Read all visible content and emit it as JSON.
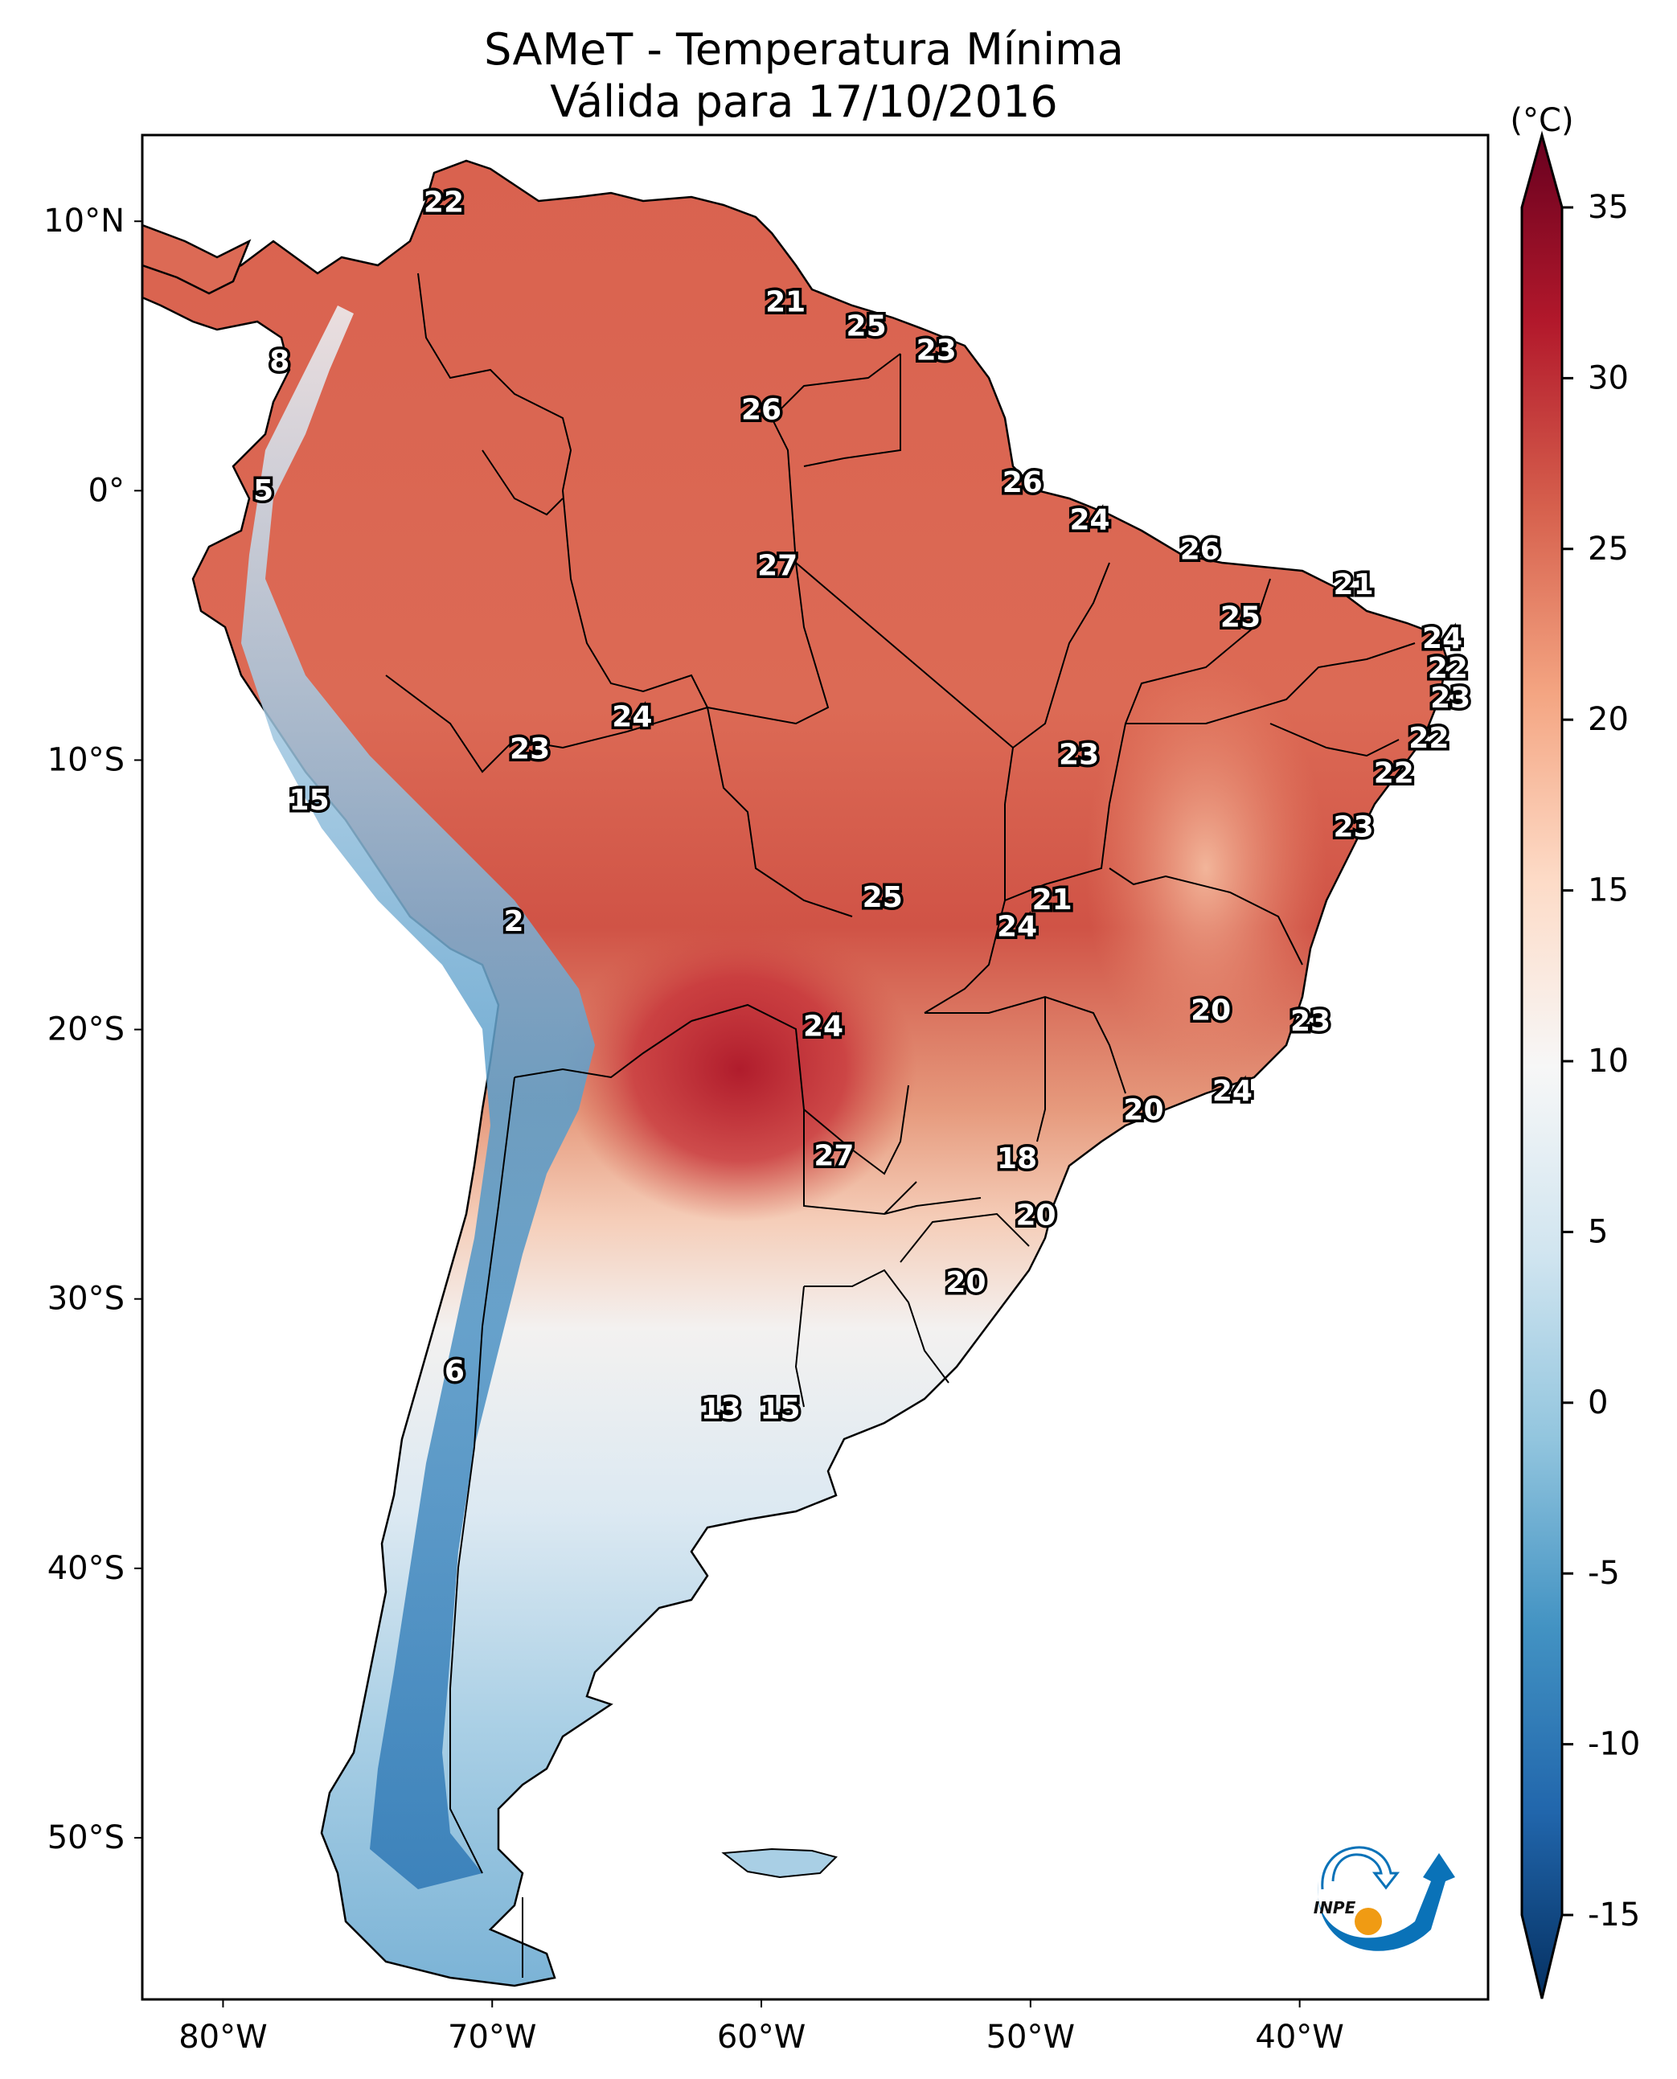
{
  "title_line1": "SAMeT - Temperatura Mínima",
  "title_line2": "Válida para 17/10/2016",
  "chart_data": {
    "type": "heatmap",
    "title": "SAMeT - Temperatura Mínima",
    "subtitle": "Válida para 17/10/2016",
    "variable": "Minimum temperature",
    "units": "(°C)",
    "region": "South America",
    "xaxis": {
      "ticks": [
        -80,
        -70,
        -60,
        -50,
        -40
      ],
      "tick_labels": [
        "80°W",
        "70°W",
        "60°W",
        "50°W",
        "40°W"
      ],
      "range": [
        -83,
        -33
      ]
    },
    "yaxis": {
      "ticks": [
        10,
        0,
        -10,
        -20,
        -30,
        -40,
        -50
      ],
      "tick_labels": [
        "10°N",
        "0°",
        "10°S",
        "20°S",
        "30°S",
        "40°S",
        "50°S"
      ],
      "range": [
        -56,
        13.2
      ]
    },
    "colorbar": {
      "label": "(°C)",
      "min": -15,
      "max": 35,
      "ticks": [
        35,
        30,
        25,
        20,
        15,
        10,
        5,
        0,
        -5,
        -10,
        -15
      ],
      "tick_labels": [
        "35",
        "30",
        "25",
        "20",
        "15",
        "10",
        "5",
        "0",
        "-5",
        "-10",
        "-15"
      ],
      "colormap": "RdBu_r",
      "extend": "both",
      "colors": {
        "-15": "#053061",
        "-10": "#2166ac",
        "-5": "#4393c3",
        "0": "#92c5de",
        "5": "#d1e5f0",
        "10": "#f7f7f7",
        "15": "#fddbc7",
        "20": "#f4a582",
        "25": "#d6604d",
        "30": "#b2182b",
        "35": "#67001f"
      }
    },
    "annotations": [
      {
        "lon": -71.8,
        "lat": 10.7,
        "value": 22
      },
      {
        "lon": -77.9,
        "lat": 4.8,
        "value": 8
      },
      {
        "lon": -78.5,
        "lat": 0.0,
        "value": 5
      },
      {
        "lon": -59.1,
        "lat": 7.0,
        "value": 21
      },
      {
        "lon": -56.1,
        "lat": 6.1,
        "value": 25
      },
      {
        "lon": -53.5,
        "lat": 5.2,
        "value": 23
      },
      {
        "lon": -60.0,
        "lat": 3.0,
        "value": 26
      },
      {
        "lon": -50.3,
        "lat": 0.3,
        "value": 26
      },
      {
        "lon": -47.8,
        "lat": -1.1,
        "value": 24
      },
      {
        "lon": -59.4,
        "lat": -2.8,
        "value": 27
      },
      {
        "lon": -43.7,
        "lat": -2.2,
        "value": 26
      },
      {
        "lon": -38.0,
        "lat": -3.5,
        "value": 21
      },
      {
        "lon": -42.2,
        "lat": -4.7,
        "value": 25
      },
      {
        "lon": -34.7,
        "lat": -5.5,
        "value": 24
      },
      {
        "lon": -34.5,
        "lat": -6.6,
        "value": 22
      },
      {
        "lon": -34.4,
        "lat": -7.7,
        "value": 23
      },
      {
        "lon": -64.8,
        "lat": -8.4,
        "value": 24
      },
      {
        "lon": -68.6,
        "lat": -9.6,
        "value": 23
      },
      {
        "lon": -48.2,
        "lat": -9.8,
        "value": 23
      },
      {
        "lon": -35.2,
        "lat": -9.2,
        "value": 22
      },
      {
        "lon": -36.5,
        "lat": -10.5,
        "value": 22
      },
      {
        "lon": -76.8,
        "lat": -11.5,
        "value": 15
      },
      {
        "lon": -38.0,
        "lat": -12.5,
        "value": 23
      },
      {
        "lon": -55.5,
        "lat": -15.1,
        "value": 25
      },
      {
        "lon": -49.2,
        "lat": -15.2,
        "value": 21
      },
      {
        "lon": -50.5,
        "lat": -16.2,
        "value": 24
      },
      {
        "lon": -69.2,
        "lat": -16.0,
        "value": 2
      },
      {
        "lon": -43.3,
        "lat": -19.3,
        "value": 20
      },
      {
        "lon": -39.6,
        "lat": -19.7,
        "value": 23
      },
      {
        "lon": -57.7,
        "lat": -19.9,
        "value": 24
      },
      {
        "lon": -42.5,
        "lat": -22.3,
        "value": 24
      },
      {
        "lon": -45.8,
        "lat": -23.0,
        "value": 20
      },
      {
        "lon": -57.3,
        "lat": -24.7,
        "value": 27
      },
      {
        "lon": -50.5,
        "lat": -24.8,
        "value": 18
      },
      {
        "lon": -49.8,
        "lat": -26.9,
        "value": 20
      },
      {
        "lon": -52.4,
        "lat": -29.4,
        "value": 20
      },
      {
        "lon": -71.4,
        "lat": -32.7,
        "value": 6
      },
      {
        "lon": -61.5,
        "lat": -34.1,
        "value": 13
      },
      {
        "lon": -59.3,
        "lat": -34.1,
        "value": 15
      }
    ],
    "logo": "INPE",
    "grid": false
  }
}
